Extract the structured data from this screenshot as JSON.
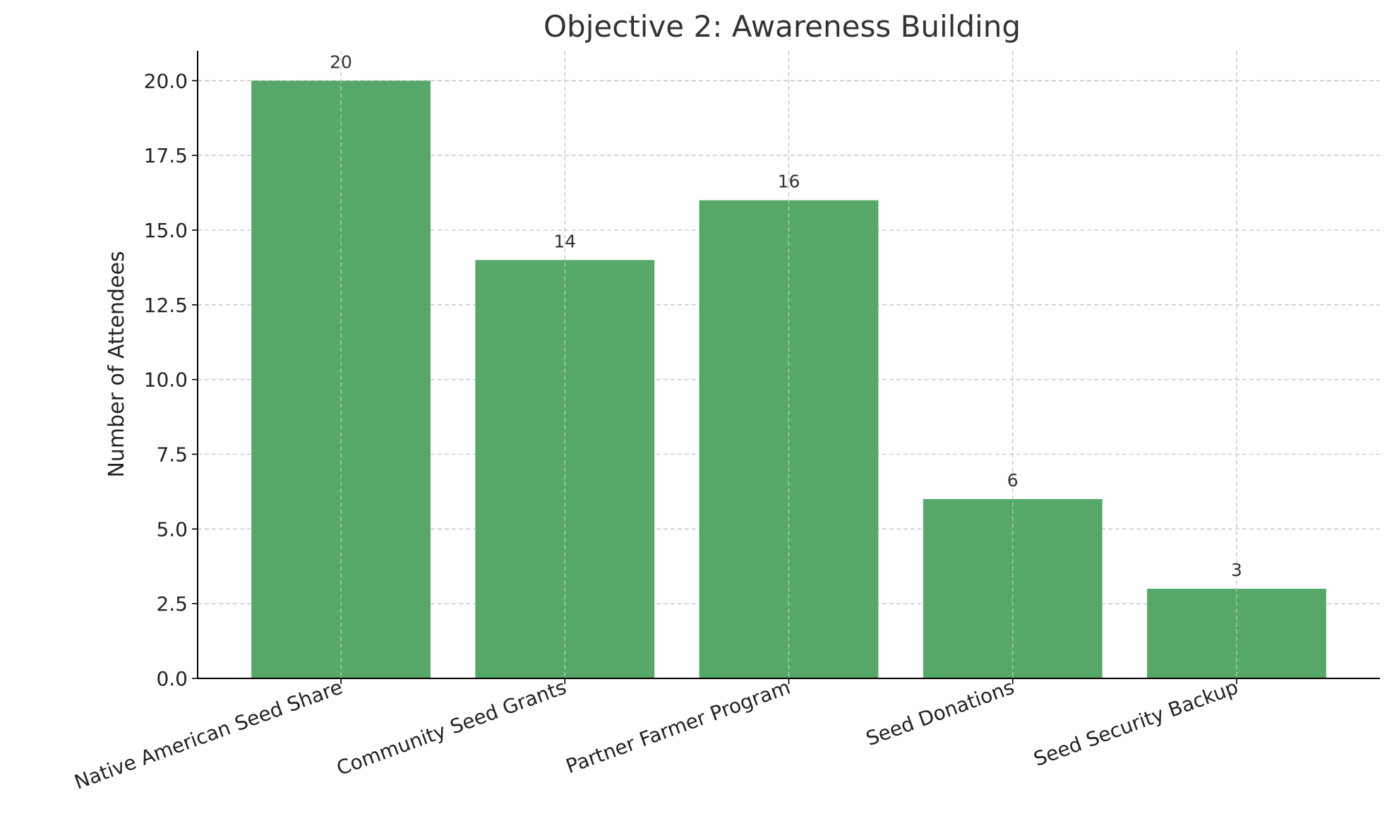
{
  "chart_data": {
    "type": "bar",
    "title": "Objective 2: Awareness Building",
    "xlabel": "",
    "ylabel": "Number of Attendees",
    "categories": [
      "Native American Seed Share",
      "Community Seed Grants",
      "Partner Farmer Program",
      "Seed Donations",
      "Seed Security Backup"
    ],
    "values": [
      20,
      14,
      16,
      6,
      3
    ],
    "data_labels": [
      "20",
      "14",
      "16",
      "6",
      "3"
    ],
    "ylim": [
      0,
      21
    ],
    "yticks": [
      0,
      2.5,
      5,
      7.5,
      10,
      12.5,
      15,
      17.5,
      20
    ],
    "ytick_labels": [
      "0.0",
      "2.5",
      "5.0",
      "7.5",
      "10.0",
      "12.5",
      "15.0",
      "17.5",
      "20.0"
    ],
    "grid": true,
    "bar_color": "#55a868"
  }
}
